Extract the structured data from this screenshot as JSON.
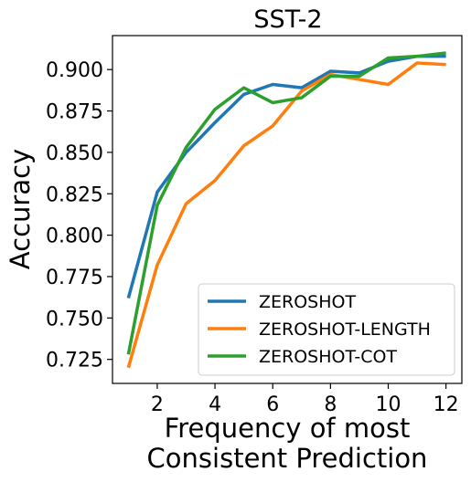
{
  "chart_data": {
    "type": "line",
    "title": "SST-2",
    "xlabel": "Frequency of most\nConsistent Prediction",
    "ylabel": "Accuracy",
    "xlim": [
      0.45,
      12.55
    ],
    "ylim": [
      0.7105,
      0.9205
    ],
    "xticks": [
      2,
      4,
      6,
      8,
      10,
      12
    ],
    "yticks": [
      0.725,
      0.75,
      0.775,
      0.8,
      0.825,
      0.85,
      0.875,
      0.9
    ],
    "ytick_labels": [
      "0.725",
      "0.750",
      "0.775",
      "0.800",
      "0.825",
      "0.850",
      "0.875",
      "0.900"
    ],
    "grid": false,
    "legend_position": "lower-right",
    "x": [
      1,
      2,
      3,
      4,
      5,
      6,
      7,
      8,
      9,
      10,
      11,
      12
    ],
    "series": [
      {
        "name": "ZEROSHOT",
        "color": "#1f77b4",
        "values": [
          0.762,
          0.826,
          0.85,
          0.868,
          0.885,
          0.891,
          0.889,
          0.899,
          0.898,
          0.905,
          0.908,
          0.908
        ]
      },
      {
        "name": "ZEROSHOT-LENGTH",
        "color": "#ff7f0e",
        "values": [
          0.72,
          0.782,
          0.819,
          0.833,
          0.854,
          0.866,
          0.887,
          0.897,
          0.894,
          0.891,
          0.904,
          0.903
        ]
      },
      {
        "name": "ZEROSHOT-COT",
        "color": "#2ca02c",
        "values": [
          0.728,
          0.818,
          0.853,
          0.876,
          0.889,
          0.88,
          0.883,
          0.896,
          0.896,
          0.907,
          0.908,
          0.91
        ]
      }
    ]
  }
}
